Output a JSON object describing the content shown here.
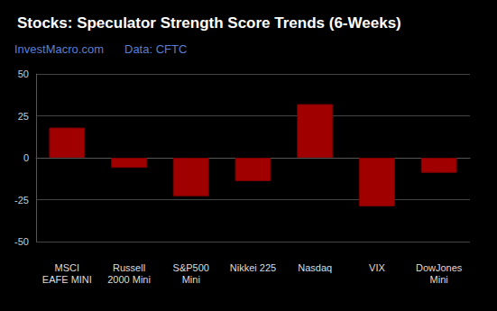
{
  "chart_data": {
    "type": "bar",
    "title": "Stocks: Speculator Strength Score Trends (6-Weeks)",
    "annotations": [
      "InvestMacro.com",
      "Data: CFTC"
    ],
    "categories": [
      "MSCI\nEAFE MINI",
      "Russell\n2000 Mini",
      "S&P500\nMini",
      "Nikkei 225",
      "Nasdaq",
      "VIX",
      "DowJones\nMini"
    ],
    "values": [
      18,
      -6,
      -23,
      -14,
      32,
      -29,
      -9
    ],
    "color": "#a00000",
    "ylim": [
      -50,
      50
    ],
    "yticks": [
      -50,
      -25,
      0,
      25,
      50
    ],
    "grid": true
  }
}
